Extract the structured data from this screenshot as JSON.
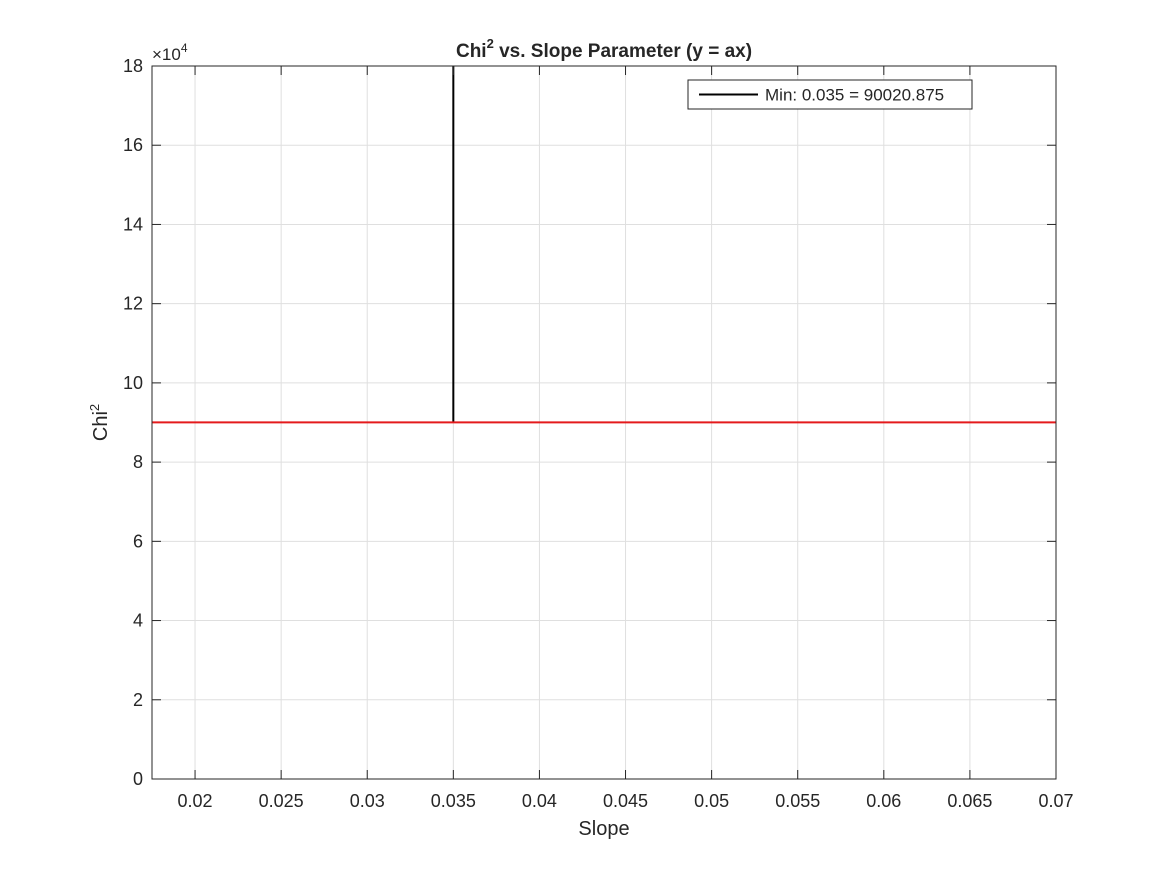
{
  "chart_data": {
    "type": "line",
    "title": {
      "prefix": "Chi",
      "superscript": "2",
      "suffix": " vs. Slope Parameter (y = ax)"
    },
    "xlabel": "Slope",
    "ylabel": {
      "prefix": "Chi",
      "superscript": "2"
    },
    "xlim": [
      0.0175,
      0.07
    ],
    "ylim": [
      0,
      180000
    ],
    "y_exponent_label": {
      "prefix": "×10",
      "superscript": "4"
    },
    "x_ticks": [
      {
        "value": 0.02,
        "label": "0.02"
      },
      {
        "value": 0.025,
        "label": "0.025"
      },
      {
        "value": 0.03,
        "label": "0.03"
      },
      {
        "value": 0.035,
        "label": "0.035"
      },
      {
        "value": 0.04,
        "label": "0.04"
      },
      {
        "value": 0.045,
        "label": "0.045"
      },
      {
        "value": 0.05,
        "label": "0.05"
      },
      {
        "value": 0.055,
        "label": "0.055"
      },
      {
        "value": 0.06,
        "label": "0.06"
      },
      {
        "value": 0.065,
        "label": "0.065"
      },
      {
        "value": 0.07,
        "label": "0.07"
      }
    ],
    "y_ticks": [
      {
        "value": 0,
        "label": "0"
      },
      {
        "value": 20000,
        "label": "2"
      },
      {
        "value": 40000,
        "label": "4"
      },
      {
        "value": 60000,
        "label": "6"
      },
      {
        "value": 80000,
        "label": "8"
      },
      {
        "value": 100000,
        "label": "10"
      },
      {
        "value": 120000,
        "label": "12"
      },
      {
        "value": 140000,
        "label": "14"
      },
      {
        "value": 160000,
        "label": "16"
      },
      {
        "value": 180000,
        "label": "18"
      }
    ],
    "grid": true,
    "legend_position": "top-right",
    "series": [
      {
        "name": "Min: 0.035 = 90020.875",
        "color": "#000000",
        "x": [
          0.035,
          0.035
        ],
        "y": [
          90020.875,
          180000
        ]
      },
      {
        "color": "#e41a1c",
        "x": [
          0.0175,
          0.07
        ],
        "y": [
          90020.875,
          90020.875
        ]
      }
    ]
  }
}
